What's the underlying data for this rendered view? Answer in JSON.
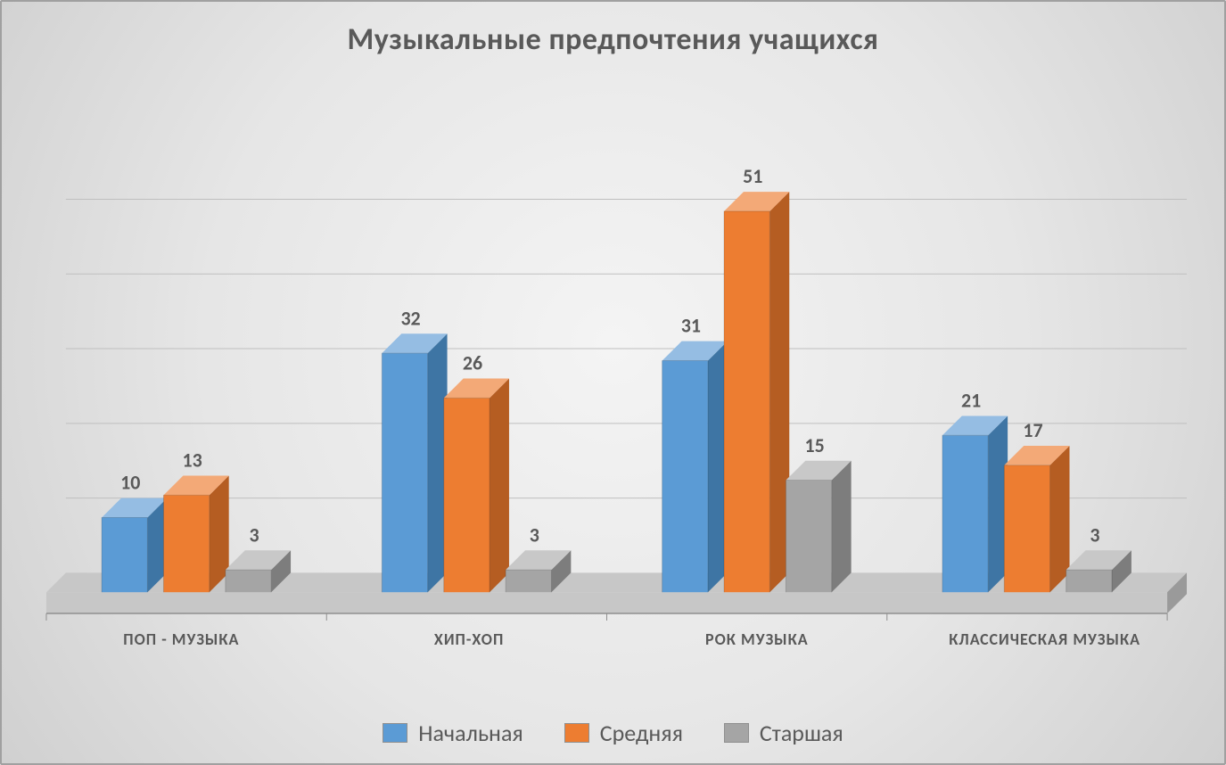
{
  "chart": {
    "type": "bar-3d-clustered",
    "title": "Музыкальные предпочтения учащихся",
    "title_fontsize": 34,
    "title_color": "#595959",
    "title_weight": 700,
    "categories": [
      "ПОП - МУЗЫКА",
      "ХИП-ХОП",
      "РОК МУЗЫКА",
      "КЛАССИЧЕСКАЯ МУЗЫКА"
    ],
    "category_label_fontsize": 18,
    "category_label_color": "#595959",
    "series": [
      {
        "name": "Начальная",
        "values": [
          10,
          32,
          31,
          21
        ],
        "front_color": "#5b9bd5",
        "side_color": "#3e75a4",
        "top_color": "#95bde3"
      },
      {
        "name": "Средняя",
        "values": [
          13,
          26,
          51,
          17
        ],
        "front_color": "#ed7d31",
        "side_color": "#b55d22",
        "top_color": "#f3a977"
      },
      {
        "name": "Старшая",
        "values": [
          3,
          3,
          15,
          3
        ],
        "front_color": "#a5a5a5",
        "side_color": "#7d7d7d",
        "top_color": "#c8c8c8"
      }
    ],
    "value_label_fontsize": 22,
    "value_label_color": "#595959",
    "value_label_weight": 700,
    "ymax": 60,
    "ytick_step": 10,
    "gridline_color": "#bfbfbf",
    "gridline_width": 1,
    "floor_color": "#c7c7c7",
    "floor_side_color": "#9a9a9a",
    "backwall_color": "rgba(0,0,0,0)",
    "axis_line_color": "#8f8f8f",
    "legend_fontsize": 26,
    "legend_color": "#595959",
    "legend_swatch_border": "#8f8f8f",
    "bar_depth": 22,
    "bar_width_ratio": 0.68,
    "group_gap_ratio": 0.28,
    "background_gradient_inner": "#f4f4f4",
    "background_gradient_outer": "#d0d0d0",
    "frame_border_color": "#a0a0a0"
  }
}
